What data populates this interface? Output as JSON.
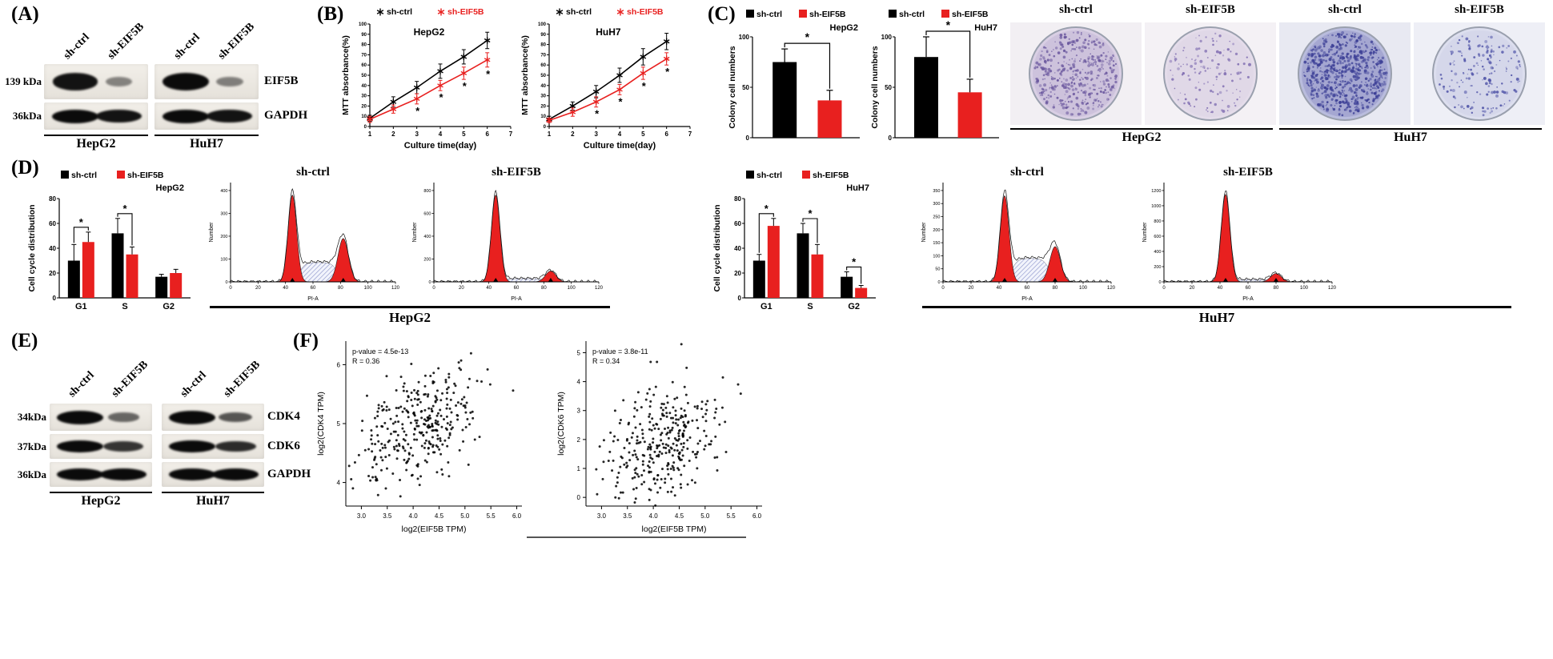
{
  "colors": {
    "ctrl": "#000000",
    "knockdown": "#e8201f",
    "band": "#0b0b0b",
    "hatch_line": "#8890c8",
    "hatch_bg": "#f2f4fc"
  },
  "panelA": {
    "label": "(A)",
    "lane_labels": [
      "sh-ctrl",
      "sh-EIF5B",
      "sh-ctrl",
      "sh-EIF5B"
    ],
    "rows": [
      {
        "mw": "139 kDa",
        "protein": "EIF5B",
        "bands": [
          0.95,
          0.28,
          1.0,
          0.3
        ]
      },
      {
        "mw": "36kDa",
        "protein": "GAPDH",
        "bands": [
          1.0,
          0.95,
          1.0,
          0.95
        ]
      }
    ],
    "groups": [
      "HepG2",
      "HuH7"
    ]
  },
  "panelB": {
    "label": "(B)"
  },
  "panelC": {
    "label": "(C)",
    "wells": {
      "labels": [
        "sh-ctrl",
        "sh-EIF5B",
        "sh-ctrl",
        "sh-EIF5B"
      ],
      "groups": [
        "HepG2",
        "HuH7"
      ],
      "dishes": [
        {
          "bg": "#f2eff3",
          "base": "#d9cfe4",
          "dot": "#6a579e",
          "density": 420,
          "seed": 11
        },
        {
          "bg": "#f4f1f5",
          "base": "#e4dcea",
          "dot": "#7a67ae",
          "density": 130,
          "seed": 22
        },
        {
          "bg": "#e8e9f2",
          "base": "#b9bcdd",
          "dot": "#3c3f96",
          "density": 650,
          "seed": 33
        },
        {
          "bg": "#eeeff6",
          "base": "#dcdeee",
          "dot": "#4c50a6",
          "density": 170,
          "seed": 44
        }
      ]
    }
  },
  "panelD": {
    "label": "(D)",
    "group_labels": [
      "HepG2",
      "HuH7"
    ]
  },
  "panelE": {
    "label": "(E)",
    "lane_labels": [
      "sh-ctrl",
      "sh-EIF5B",
      "sh-ctrl",
      "sh-EIF5B"
    ],
    "rows": [
      {
        "mw": "34kDa",
        "protein": "CDK4",
        "bands": [
          1.0,
          0.45,
          1.0,
          0.55
        ]
      },
      {
        "mw": "37kDa",
        "protein": "CDK6",
        "bands": [
          1.0,
          0.75,
          1.0,
          0.8
        ]
      },
      {
        "mw": "36kDa",
        "protein": "GAPDH",
        "bands": [
          1.0,
          1.0,
          1.0,
          1.0
        ]
      }
    ],
    "groups": [
      "HepG2",
      "HuH7"
    ]
  },
  "panelF": {
    "label": "(F)"
  },
  "chart_data": [
    {
      "id": "mtt_hepg2",
      "type": "line",
      "title": "HepG2",
      "xlabel": "Culture time(day)",
      "ylabel": "MTT absorbance(%)",
      "xlim": [
        1,
        7
      ],
      "ylim": [
        0,
        100
      ],
      "xticks": [
        1,
        2,
        3,
        4,
        5,
        6,
        7
      ],
      "yticks": [
        0,
        10,
        20,
        30,
        40,
        50,
        60,
        70,
        80,
        90,
        100
      ],
      "x": [
        1,
        2,
        3,
        4,
        5,
        6
      ],
      "series": [
        {
          "name": "sh-ctrl",
          "color": "#000000",
          "marker": "star",
          "values": [
            8,
            24,
            38,
            54,
            68,
            84
          ],
          "errors": [
            3,
            5,
            6,
            7,
            7,
            8
          ]
        },
        {
          "name": "sh-EIF5B",
          "color": "#e8201f",
          "marker": "star",
          "values": [
            7,
            17,
            27,
            40,
            52,
            65
          ],
          "errors": [
            3,
            4,
            5,
            5,
            6,
            7
          ]
        }
      ],
      "sig_x": [
        3,
        4,
        5,
        6
      ],
      "legend_position": "top"
    },
    {
      "id": "mtt_huh7",
      "type": "line",
      "title": "HuH7",
      "xlabel": "Culture time(day)",
      "ylabel": "MTT absorbance(%)",
      "xlim": [
        1,
        7
      ],
      "ylim": [
        0,
        100
      ],
      "xticks": [
        1,
        2,
        3,
        4,
        5,
        6,
        7
      ],
      "yticks": [
        0,
        10,
        20,
        30,
        40,
        50,
        60,
        70,
        80,
        90,
        100
      ],
      "x": [
        1,
        2,
        3,
        4,
        5,
        6
      ],
      "series": [
        {
          "name": "sh-ctrl",
          "color": "#000000",
          "marker": "star",
          "values": [
            7,
            20,
            34,
            50,
            68,
            83
          ],
          "errors": [
            3,
            4,
            6,
            7,
            8,
            8
          ]
        },
        {
          "name": "sh-EIF5B",
          "color": "#e8201f",
          "marker": "star",
          "values": [
            6,
            14,
            24,
            36,
            52,
            66
          ],
          "errors": [
            2,
            4,
            5,
            5,
            6,
            6
          ]
        }
      ],
      "sig_x": [
        3,
        4,
        5,
        6
      ],
      "legend_position": "top"
    },
    {
      "id": "colony_hepg2",
      "type": "bar",
      "title": "HepG2",
      "ylabel": "Colony cell numbers",
      "categories": [
        "sh-ctrl",
        "sh-EIF5B"
      ],
      "values": [
        75,
        37
      ],
      "errors": [
        13,
        10
      ],
      "colors": [
        "#000000",
        "#e8201f"
      ],
      "ylim": [
        0,
        100
      ],
      "yticks": [
        0,
        50,
        100
      ],
      "sig": "*"
    },
    {
      "id": "colony_huh7",
      "type": "bar",
      "title": "HuH7",
      "ylabel": "Colony cell numbers",
      "categories": [
        "sh-ctrl",
        "sh-EIF5B"
      ],
      "values": [
        80,
        45
      ],
      "errors": [
        20,
        13
      ],
      "colors": [
        "#000000",
        "#e8201f"
      ],
      "ylim": [
        0,
        100
      ],
      "yticks": [
        0,
        50,
        100
      ],
      "sig": "*"
    },
    {
      "id": "cellcycle_hepg2",
      "type": "grouped_bar",
      "title": "HepG2",
      "ylabel": "Cell cycle distribution",
      "categories": [
        "G1",
        "S",
        "G2"
      ],
      "series": [
        {
          "name": "sh-ctrl",
          "color": "#000000",
          "values": [
            30,
            52,
            17
          ],
          "errors": [
            13,
            12,
            2
          ]
        },
        {
          "name": "sh-EIF5B",
          "color": "#e8201f",
          "values": [
            45,
            35,
            20
          ],
          "errors": [
            8,
            6,
            3
          ]
        }
      ],
      "ylim": [
        0,
        80
      ],
      "yticks": [
        0,
        20,
        40,
        60,
        80
      ],
      "sig_categories": [
        "G1",
        "S"
      ]
    },
    {
      "id": "cellcycle_huh7",
      "type": "grouped_bar",
      "title": "HuH7",
      "ylabel": "Cell cycle distribution",
      "categories": [
        "G1",
        "S",
        "G2"
      ],
      "series": [
        {
          "name": "sh-ctrl",
          "color": "#000000",
          "values": [
            30,
            52,
            17
          ],
          "errors": [
            5,
            8,
            4
          ]
        },
        {
          "name": "sh-EIF5B",
          "color": "#e8201f",
          "values": [
            58,
            35,
            8
          ],
          "errors": [
            6,
            8,
            2
          ]
        }
      ],
      "ylim": [
        0,
        80
      ],
      "yticks": [
        0,
        20,
        40,
        60,
        80
      ],
      "sig_categories": [
        "G1",
        "S",
        "G2"
      ]
    },
    {
      "id": "flow_hepg2_ctrl",
      "type": "flow_histogram",
      "title": "sh-ctrl",
      "xlabel": "PI-A",
      "ylabel": "Number",
      "xlim": [
        0,
        120
      ],
      "xticks": [
        0,
        20,
        40,
        60,
        80,
        100,
        120
      ],
      "yticks": [
        0,
        100,
        200,
        300,
        400
      ],
      "g1_x": 45,
      "g1_h": 380,
      "g2_x": 82,
      "g2_h": 190,
      "s_h": 85
    },
    {
      "id": "flow_hepg2_eif5b",
      "type": "flow_histogram",
      "title": "sh-EIF5B",
      "xlabel": "PI-A",
      "ylabel": "Number",
      "xlim": [
        0,
        120
      ],
      "xticks": [
        0,
        20,
        40,
        60,
        80,
        100,
        120
      ],
      "yticks": [
        0,
        200,
        400,
        600,
        800
      ],
      "g1_x": 45,
      "g1_h": 760,
      "g2_x": 85,
      "g2_h": 95,
      "s_h": 28
    },
    {
      "id": "flow_huh7_ctrl",
      "type": "flow_histogram",
      "title": "sh-ctrl",
      "xlabel": "PI-A",
      "ylabel": "Number",
      "xlim": [
        0,
        120
      ],
      "xticks": [
        0,
        20,
        40,
        60,
        80,
        100,
        120
      ],
      "yticks": [
        0,
        50,
        100,
        150,
        200,
        250,
        300,
        350
      ],
      "g1_x": 44,
      "g1_h": 330,
      "g2_x": 80,
      "g2_h": 135,
      "s_h": 90
    },
    {
      "id": "flow_huh7_eif5b",
      "type": "flow_histogram",
      "title": "sh-EIF5B",
      "xlabel": "PI-A",
      "ylabel": "Number",
      "xlim": [
        0,
        120
      ],
      "xticks": [
        0,
        20,
        40,
        60,
        80,
        100,
        120
      ],
      "yticks": [
        0,
        200,
        400,
        600,
        800,
        1000,
        1200
      ],
      "g1_x": 44,
      "g1_h": 1150,
      "g2_x": 80,
      "g2_h": 110,
      "s_h": 30
    },
    {
      "id": "scatter_cdk4",
      "type": "scatter",
      "annotations": [
        "p-value = 4.5e-13",
        "R = 0.36"
      ],
      "xlabel": "log2(EIF5B TPM)",
      "ylabel": "log2(CDK4 TPM)",
      "xlim": [
        2.7,
        6.1
      ],
      "ylim": [
        3.6,
        6.4
      ],
      "xticks": [
        3.0,
        3.5,
        4.0,
        4.5,
        5.0,
        5.5,
        6.0
      ],
      "yticks": [
        4,
        5,
        6
      ],
      "n": 330,
      "R": 0.36,
      "x_mean": 4.15,
      "x_sd": 0.55,
      "y_mean": 5.0,
      "y_sd": 0.5,
      "seed": 101
    },
    {
      "id": "scatter_cdk6",
      "type": "scatter",
      "annotations": [
        "p-value = 3.8e-11",
        "R = 0.34"
      ],
      "xlabel": "log2(EIF5B TPM)",
      "ylabel": "log2(CDK6 TPM)",
      "xlim": [
        2.7,
        6.1
      ],
      "ylim": [
        -0.3,
        5.4
      ],
      "xticks": [
        3.0,
        3.5,
        4.0,
        4.5,
        5.0,
        5.5,
        6.0
      ],
      "yticks": [
        0,
        1,
        2,
        3,
        4,
        5
      ],
      "n": 330,
      "R": 0.34,
      "x_mean": 4.15,
      "x_sd": 0.55,
      "y_mean": 1.9,
      "y_sd": 1.0,
      "seed": 202
    }
  ]
}
